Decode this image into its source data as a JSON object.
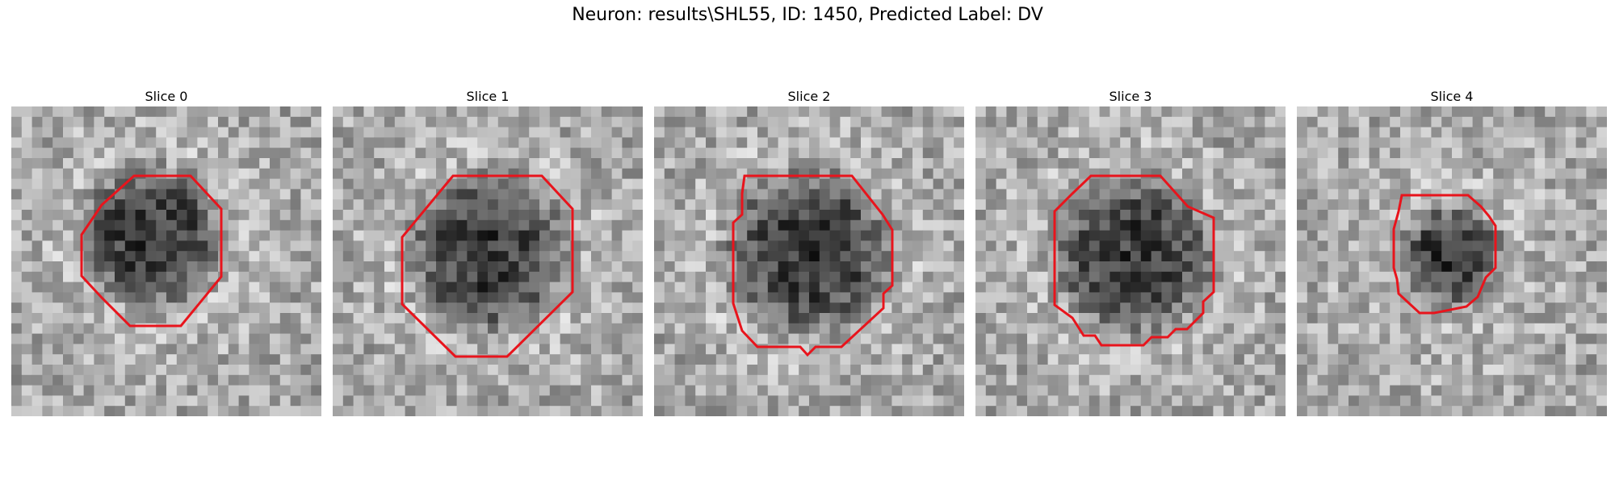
{
  "figure": {
    "title": "Neuron: results\\SHL55, ID: 1450, Predicted Label: DV"
  },
  "slices": [
    {
      "title": "Slice 0"
    },
    {
      "title": "Slice 1"
    },
    {
      "title": "Slice 2"
    },
    {
      "title": "Slice 3"
    },
    {
      "title": "Slice 4"
    }
  ],
  "colors": {
    "contour": "#e8141c",
    "background": "#ffffff"
  }
}
